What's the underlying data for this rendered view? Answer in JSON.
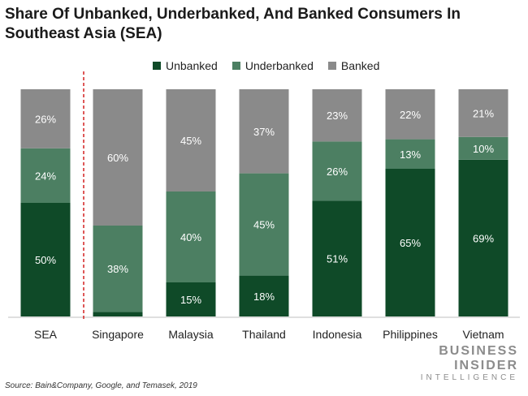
{
  "title": "Share Of Unbanked, Underbanked, And Banked Consumers In Southeast Asia (SEA)",
  "source": "Source: Bain&Company, Google, and Temasek, 2019",
  "brand": {
    "line1": "BUSINESS",
    "line2": "INSIDER",
    "line3": "INTELLIGENCE"
  },
  "colors": {
    "unbanked": "#0f4a28",
    "underbanked": "#4c7f62",
    "banked": "#8a8a8a",
    "divider": "#d42020",
    "axis": "#bfbfbf"
  },
  "legend": [
    {
      "label": "Unbanked",
      "color": "#0f4a28"
    },
    {
      "label": "Underbanked",
      "color": "#4c7f62"
    },
    {
      "label": "Banked",
      "color": "#8a8a8a"
    }
  ],
  "chart_data": {
    "type": "bar",
    "stacked": true,
    "categories": [
      "SEA",
      "Singapore",
      "Malaysia",
      "Thailand",
      "Indonesia",
      "Philippines",
      "Vietnam"
    ],
    "series": [
      {
        "name": "Unbanked",
        "values": [
          50,
          2,
          15,
          18,
          51,
          65,
          69
        ],
        "labels": [
          "50%",
          "2%",
          "15%",
          "18%",
          "51%",
          "65%",
          "69%"
        ]
      },
      {
        "name": "Underbanked",
        "values": [
          24,
          38,
          40,
          45,
          26,
          13,
          10
        ],
        "labels": [
          "24%",
          "38%",
          "40%",
          "45%",
          "26%",
          "13%",
          "10%"
        ]
      },
      {
        "name": "Banked",
        "values": [
          26,
          60,
          45,
          37,
          23,
          22,
          21
        ],
        "labels": [
          "26%",
          "60%",
          "45%",
          "37%",
          "23%",
          "22%",
          "21%"
        ]
      }
    ],
    "ylim": [
      0,
      100
    ],
    "grid": false,
    "legend_position": "top",
    "divider_after_category": "SEA"
  }
}
